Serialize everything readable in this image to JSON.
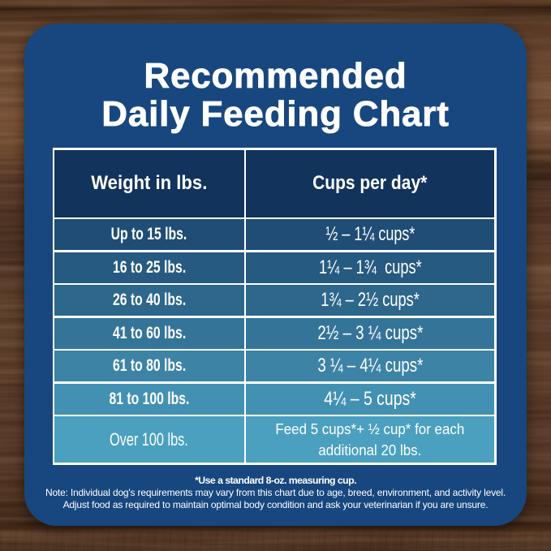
{
  "title": {
    "line1": "Recommended",
    "line2": "Daily Feeding Chart"
  },
  "table": {
    "header": {
      "weight_label": "Weight in lbs.",
      "cups_label": "Cups per day*"
    },
    "rows": [
      {
        "weight": "Up to 15 lbs.",
        "cups": "½ – 1¼ cups*",
        "bg": "#1f4d76"
      },
      {
        "weight": "16 to 25 lbs.",
        "cups": "1¼ – 1¾  cups*",
        "bg": "#265a80"
      },
      {
        "weight": "26 to 40 lbs.",
        "cups": "1¾ – 2½ cups*",
        "bg": "#2d678c"
      },
      {
        "weight": "41 to 60 lbs.",
        "cups": "2½ – 3 ¼ cups*",
        "bg": "#347499"
      },
      {
        "weight": "61 to 80 lbs.",
        "cups": "3 ¼ – 4¼ cups*",
        "bg": "#3c83a6"
      },
      {
        "weight": "81 to 100 lbs.",
        "cups": "4¼ – 5 cups*",
        "bg": "#4391b2"
      },
      {
        "weight": "Over 100 lbs.",
        "cups": "Feed 5 cups*+ ½ cup* for each\nadditional 20 lbs.",
        "bg": "#4ba0bf",
        "tall": true
      }
    ],
    "header_bg": "#12335b"
  },
  "footnotes": {
    "cup_note": "*Use a standard 8-oz. measuring cup.",
    "disclaimer_line1": "Note: Individual dog's requirements may vary from this chart due to age, breed, environment, and activity level.",
    "disclaimer_line2": "Adjust food as required to maintain optimal body condition and ask your veterinarian if you are unsure."
  },
  "colors": {
    "card_background": "#17477e",
    "table_border": "#ffffff",
    "text": "#ffffff",
    "wood_dark": "#35200f",
    "wood_mid": "#553723",
    "wood_light": "#6e482e"
  }
}
